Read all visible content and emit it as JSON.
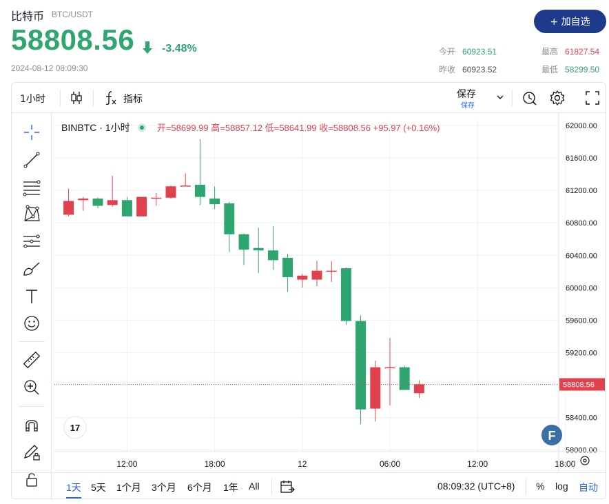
{
  "header": {
    "name": "比特币",
    "pair": "BTC/USDT",
    "price": "58808.56",
    "change_pct": "-3.48%",
    "timestamp": "2024-08-12 08:09:30",
    "add_button": "+ 加自选",
    "open_label": "今开",
    "open_value": "60923.51",
    "prev_label": "昨收",
    "prev_value": "60923.52",
    "high_label": "最高",
    "high_value": "61827.54",
    "low_label": "最低",
    "low_value": "58299.50",
    "colors": {
      "up": "#2fa66f",
      "down": "#e0424d",
      "brand": "#1e3a8a",
      "accent": "#2962ff"
    }
  },
  "toolbar": {
    "interval": "1小时",
    "indicators": "指标",
    "save": "保存",
    "save_sub": "保存",
    "icons": [
      "candles-icon",
      "fx-icon",
      "chevron-down-icon",
      "alert-clock-icon",
      "gear-icon",
      "fullscreen-icon"
    ]
  },
  "left_tools": [
    "crosshair-icon",
    "trendline-icon",
    "fib-icon",
    "pattern-icon",
    "forecast-icon",
    "brush-icon",
    "text-icon",
    "emoji-icon",
    "ruler-icon",
    "zoom-in-icon",
    "magnet-icon",
    "lock-pencil-icon",
    "lock-icon"
  ],
  "legend": {
    "symbol": "BINBTC · 1小时",
    "open": "开=58699.99",
    "high": "高=58857.12",
    "low": "低=58641.99",
    "close": "收=58808.56",
    "change": "+95.97 (+0.16%)"
  },
  "bottombar": {
    "ranges": [
      "1天",
      "5天",
      "1个月",
      "3个月",
      "6个月",
      "1年",
      "All"
    ],
    "active_range": "1天",
    "time": "08:09:32 (UTC+8)",
    "percent": "%",
    "log": "log",
    "auto": "自动"
  },
  "chart_data": {
    "type": "candlestick",
    "y_ticks": [
      62000,
      61600,
      61200,
      60800,
      60400,
      60000,
      59600,
      59200,
      58800,
      58400,
      58000
    ],
    "y_tick_labels": [
      "62000.00",
      "61600.00",
      "61200.00",
      "60800.00",
      "60400.00",
      "60000.00",
      "59600.00",
      "59200.00",
      "58800.00",
      "58400.00",
      "58000.00"
    ],
    "ylim": [
      57980,
      62060
    ],
    "x_tick_labels": [
      {
        "label": "12:00",
        "slot": 4.5
      },
      {
        "label": "18:00",
        "slot": 10.5
      },
      {
        "label": "12",
        "slot": 16.5
      },
      {
        "label": "06:00",
        "slot": 22.5
      },
      {
        "label": "12:00",
        "slot": 28.5
      },
      {
        "label": "18:00",
        "slot": 34.5
      }
    ],
    "last_price": 58808.56,
    "last_price_label": "58808.56",
    "grid": true,
    "candles": [
      {
        "o": 60900,
        "h": 61220,
        "l": 60880,
        "c": 61070
      },
      {
        "o": 61080,
        "h": 61120,
        "l": 60950,
        "c": 61100
      },
      {
        "o": 61100,
        "h": 61110,
        "l": 60980,
        "c": 61010
      },
      {
        "o": 61020,
        "h": 61380,
        "l": 61000,
        "c": 61080
      },
      {
        "o": 61080,
        "h": 61120,
        "l": 60880,
        "c": 60880
      },
      {
        "o": 60880,
        "h": 61120,
        "l": 60880,
        "c": 61120
      },
      {
        "o": 61100,
        "h": 61170,
        "l": 61010,
        "c": 61110
      },
      {
        "o": 61110,
        "h": 61260,
        "l": 61100,
        "c": 61250
      },
      {
        "o": 61250,
        "h": 61410,
        "l": 61250,
        "c": 61260
      },
      {
        "o": 61270,
        "h": 61830,
        "l": 61020,
        "c": 61120
      },
      {
        "o": 61100,
        "h": 61250,
        "l": 60970,
        "c": 61030
      },
      {
        "o": 61040,
        "h": 61060,
        "l": 60440,
        "c": 60660
      },
      {
        "o": 60660,
        "h": 60670,
        "l": 60280,
        "c": 60470
      },
      {
        "o": 60490,
        "h": 60740,
        "l": 60180,
        "c": 60460
      },
      {
        "o": 60460,
        "h": 60760,
        "l": 60220,
        "c": 60340
      },
      {
        "o": 60370,
        "h": 60420,
        "l": 59950,
        "c": 60130
      },
      {
        "o": 60100,
        "h": 60170,
        "l": 60000,
        "c": 60150
      },
      {
        "o": 60100,
        "h": 60330,
        "l": 60020,
        "c": 60210
      },
      {
        "o": 60200,
        "h": 60330,
        "l": 60070,
        "c": 60210
      },
      {
        "o": 60240,
        "h": 60250,
        "l": 59540,
        "c": 59590
      },
      {
        "o": 59590,
        "h": 59660,
        "l": 58320,
        "c": 58500
      },
      {
        "o": 58510,
        "h": 59100,
        "l": 58350,
        "c": 59020
      },
      {
        "o": 59010,
        "h": 59380,
        "l": 58550,
        "c": 59020
      },
      {
        "o": 59020,
        "h": 59040,
        "l": 58740,
        "c": 58740
      },
      {
        "o": 58700,
        "h": 58860,
        "l": 58640,
        "c": 58810
      }
    ]
  }
}
